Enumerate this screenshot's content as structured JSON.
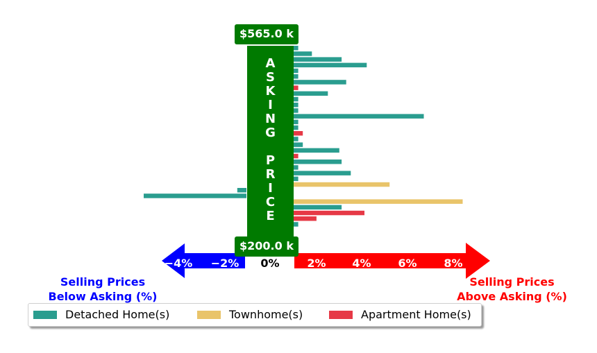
{
  "chart_data": {
    "type": "bar",
    "orientation": "horizontal",
    "x_unit": "%",
    "xlim": [
      -4,
      8
    ],
    "x_ticks": [
      "−4%",
      "−2%",
      "0%",
      "2%",
      "4%",
      "6%",
      "8%"
    ],
    "asking_price_label": "ASKING PRICE",
    "price_top": "$565.0 k",
    "price_bottom": "$200.0 k",
    "left_label": [
      "Selling Prices",
      "Below Asking (%)"
    ],
    "right_label": [
      "Selling Prices",
      "Above Asking (%)"
    ],
    "series": [
      {
        "name": "Detached Home(s)",
        "color": "#2a9d8f"
      },
      {
        "name": "Townhome(s)",
        "color": "#e9c46a"
      },
      {
        "name": "Apartment Home(s)",
        "color": "#e63946"
      }
    ],
    "bars": [
      {
        "series": 0,
        "value": 0.2
      },
      {
        "series": 0,
        "value": 0.8
      },
      {
        "series": 0,
        "value": 2.1
      },
      {
        "series": 0,
        "value": 3.2
      },
      {
        "series": 0,
        "value": 0.2
      },
      {
        "series": 0,
        "value": 0.2
      },
      {
        "series": 0,
        "value": 2.3
      },
      {
        "series": 2,
        "value": 0.2
      },
      {
        "series": 0,
        "value": 1.5
      },
      {
        "series": 0,
        "value": 0.2
      },
      {
        "series": 0,
        "value": 0.2
      },
      {
        "series": 0,
        "value": 0.2
      },
      {
        "series": 0,
        "value": 5.7
      },
      {
        "series": 0,
        "value": 0.2
      },
      {
        "series": 0,
        "value": 0.2
      },
      {
        "series": 2,
        "value": 0.4
      },
      {
        "series": 0,
        "value": 0.2
      },
      {
        "series": 0,
        "value": 0.4
      },
      {
        "series": 0,
        "value": 2.0
      },
      {
        "series": 2,
        "value": 0.2
      },
      {
        "series": 0,
        "value": 2.1
      },
      {
        "series": 0,
        "value": 0.2
      },
      {
        "series": 0,
        "value": 2.5
      },
      {
        "series": 0,
        "value": 0.2
      },
      {
        "series": 1,
        "value": 4.2
      },
      {
        "series": 0,
        "value": -0.4
      },
      {
        "series": 0,
        "value": -4.5
      },
      {
        "series": 1,
        "value": 7.4
      },
      {
        "series": 0,
        "value": 2.1
      },
      {
        "series": 2,
        "value": 3.1
      },
      {
        "series": 2,
        "value": 1.0
      },
      {
        "series": 0,
        "value": 0.2
      }
    ]
  }
}
